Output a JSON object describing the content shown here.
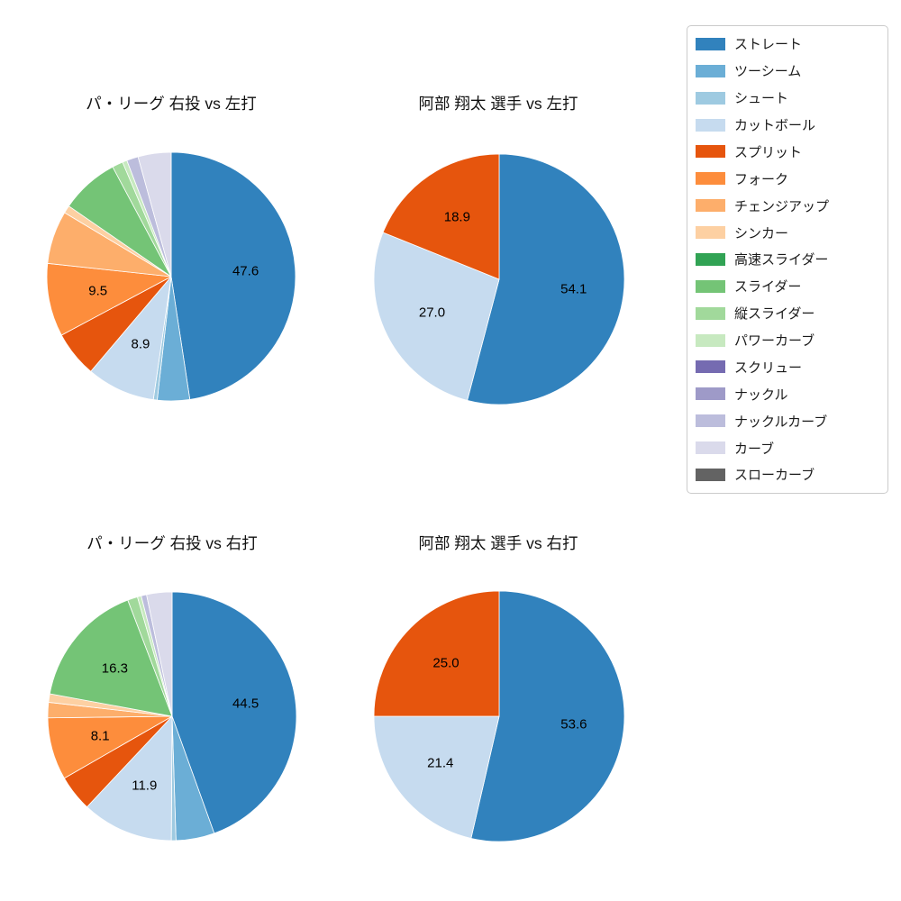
{
  "palette": {
    "ストレート": "#3182bd",
    "ツーシーム": "#6baed6",
    "シュート": "#9ecae1",
    "カットボール": "#c6dbef",
    "スプリット": "#e6550d",
    "フォーク": "#fd8d3c",
    "チェンジアップ": "#fdae6b",
    "シンカー": "#fdd0a2",
    "高速スライダー": "#31a354",
    "スライダー": "#74c476",
    "縦スライダー": "#a1d99b",
    "パワーカーブ": "#c7e9c0",
    "スクリュー": "#756bb1",
    "ナックル": "#9e9ac8",
    "ナックルカーブ": "#bcbddc",
    "カーブ": "#dadaeb",
    "スローカーブ": "#636363"
  },
  "legend": {
    "position": "upper right",
    "items": [
      "ストレート",
      "ツーシーム",
      "シュート",
      "カットボール",
      "スプリット",
      "フォーク",
      "チェンジアップ",
      "シンカー",
      "高速スライダー",
      "スライダー",
      "縦スライダー",
      "パワーカーブ",
      "スクリュー",
      "ナックル",
      "ナックルカーブ",
      "カーブ",
      "スローカーブ"
    ]
  },
  "chart_data": [
    {
      "type": "pie",
      "title": "パ・リーグ 右投 vs 左打",
      "direction": "clockwise",
      "start_angle": "12-oclock",
      "value_unit": "percent",
      "slices": [
        {
          "label": "ストレート",
          "value": 47.6,
          "labeled": true
        },
        {
          "label": "ツーシーム",
          "value": 4.2,
          "labeled": false
        },
        {
          "label": "シュート",
          "value": 0.5,
          "labeled": false
        },
        {
          "label": "カットボール",
          "value": 8.9,
          "labeled": true
        },
        {
          "label": "スプリット",
          "value": 6.0,
          "labeled": false
        },
        {
          "label": "フォーク",
          "value": 9.5,
          "labeled": true
        },
        {
          "label": "チェンジアップ",
          "value": 6.9,
          "labeled": false
        },
        {
          "label": "シンカー",
          "value": 1.0,
          "labeled": false
        },
        {
          "label": "スライダー",
          "value": 7.6,
          "labeled": false
        },
        {
          "label": "縦スライダー",
          "value": 1.4,
          "labeled": false
        },
        {
          "label": "パワーカーブ",
          "value": 0.6,
          "labeled": false
        },
        {
          "label": "ナックルカーブ",
          "value": 1.5,
          "labeled": false
        },
        {
          "label": "カーブ",
          "value": 4.3,
          "labeled": false
        }
      ]
    },
    {
      "type": "pie",
      "title": "阿部 翔太 選手 vs 左打",
      "direction": "clockwise",
      "start_angle": "12-oclock",
      "value_unit": "percent",
      "slices": [
        {
          "label": "ストレート",
          "value": 54.1,
          "labeled": true
        },
        {
          "label": "カットボール",
          "value": 27.0,
          "labeled": true
        },
        {
          "label": "スプリット",
          "value": 18.9,
          "labeled": true
        }
      ]
    },
    {
      "type": "pie",
      "title": "パ・リーグ 右投 vs 右打",
      "direction": "clockwise",
      "start_angle": "12-oclock",
      "value_unit": "percent",
      "slices": [
        {
          "label": "ストレート",
          "value": 44.5,
          "labeled": true
        },
        {
          "label": "ツーシーム",
          "value": 5.0,
          "labeled": false
        },
        {
          "label": "シュート",
          "value": 0.6,
          "labeled": false
        },
        {
          "label": "カットボール",
          "value": 11.9,
          "labeled": true
        },
        {
          "label": "スプリット",
          "value": 4.7,
          "labeled": false
        },
        {
          "label": "フォーク",
          "value": 8.1,
          "labeled": true
        },
        {
          "label": "チェンジアップ",
          "value": 2.0,
          "labeled": false
        },
        {
          "label": "シンカー",
          "value": 1.1,
          "labeled": false
        },
        {
          "label": "スライダー",
          "value": 16.3,
          "labeled": true
        },
        {
          "label": "縦スライダー",
          "value": 1.3,
          "labeled": false
        },
        {
          "label": "パワーカーブ",
          "value": 0.5,
          "labeled": false
        },
        {
          "label": "ナックルカーブ",
          "value": 0.7,
          "labeled": false
        },
        {
          "label": "カーブ",
          "value": 3.3,
          "labeled": false
        }
      ]
    },
    {
      "type": "pie",
      "title": "阿部 翔太 選手 vs 右打",
      "direction": "clockwise",
      "start_angle": "12-oclock",
      "value_unit": "percent",
      "slices": [
        {
          "label": "ストレート",
          "value": 53.6,
          "labeled": true
        },
        {
          "label": "カットボール",
          "value": 21.4,
          "labeled": true
        },
        {
          "label": "スプリット",
          "value": 25.0,
          "labeled": true
        }
      ]
    }
  ]
}
